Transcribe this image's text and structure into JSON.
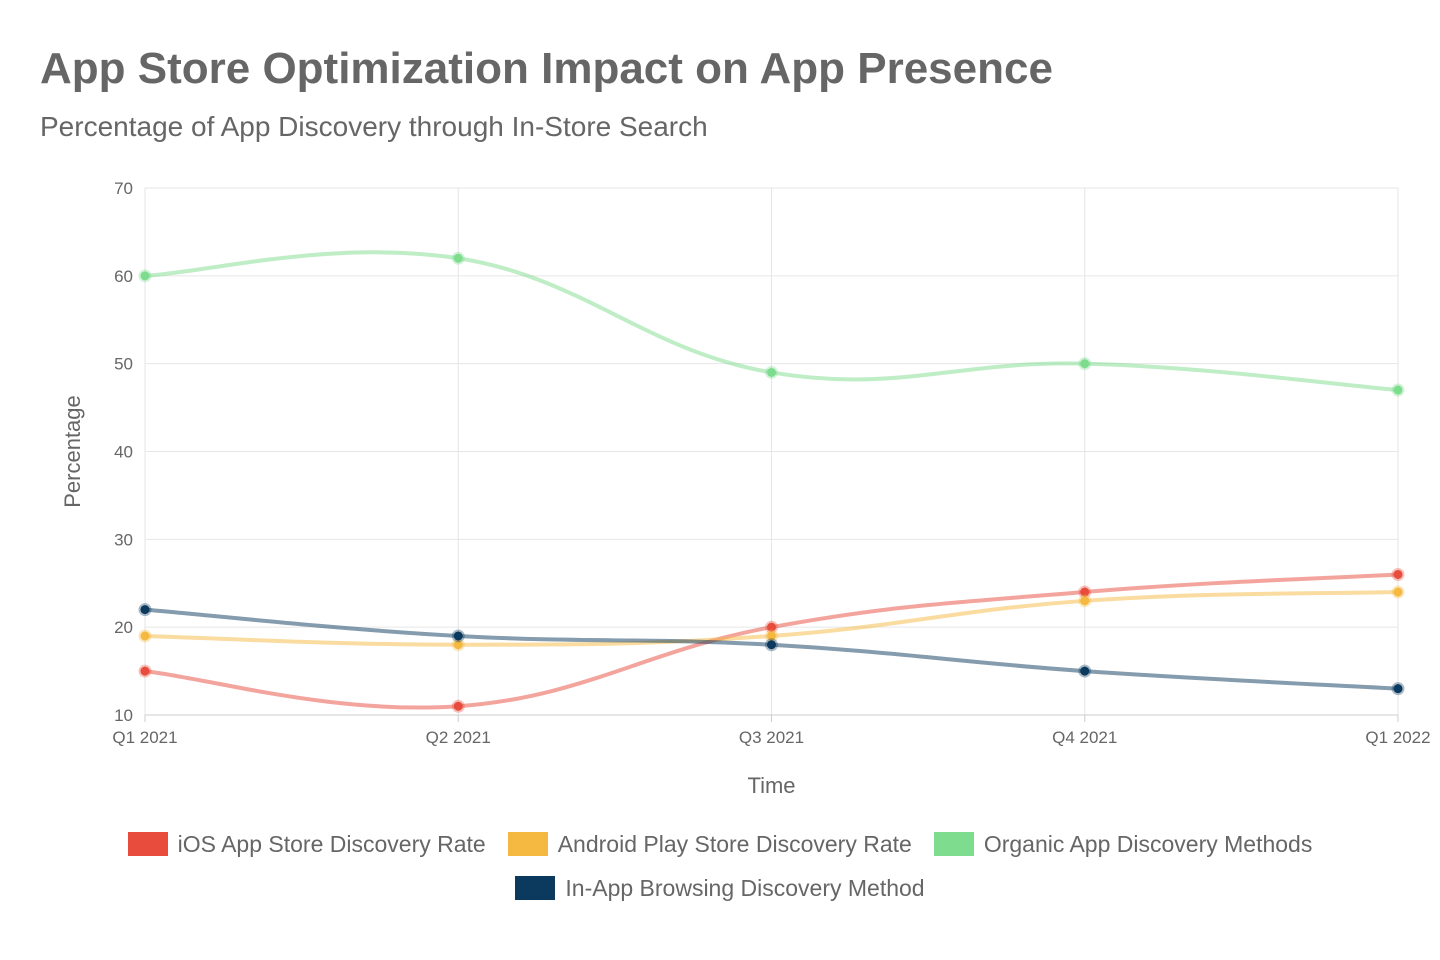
{
  "title": "App Store Optimization Impact on App Presence",
  "subtitle": "Percentage of App Discovery through In-Store Search",
  "chart_data": {
    "type": "line",
    "title": "App Store Optimization Impact on App Presence",
    "subtitle": "Percentage of App Discovery through In-Store Search",
    "xlabel": "Time",
    "ylabel": "Percentage",
    "categories": [
      "Q1 2021",
      "Q2 2021",
      "Q3 2021",
      "Q4 2021",
      "Q1 2022"
    ],
    "ylim": [
      10,
      70
    ],
    "yticks": [
      10,
      20,
      30,
      40,
      50,
      60,
      70
    ],
    "grid": true,
    "legend_position": "bottom",
    "series": [
      {
        "name": "iOS App Store Discovery Rate",
        "color": "#e74c3c",
        "values": [
          15,
          11,
          20,
          24,
          26
        ]
      },
      {
        "name": "Android Play Store Discovery Rate",
        "color": "#f5b942",
        "values": [
          19,
          18,
          19,
          23,
          24
        ]
      },
      {
        "name": "Organic App Discovery Methods",
        "color": "#7ddc8e",
        "values": [
          60,
          62,
          49,
          50,
          47
        ]
      },
      {
        "name": "In-App Browsing Discovery Method",
        "color": "#0b3a5e",
        "values": [
          22,
          19,
          18,
          15,
          13
        ]
      }
    ]
  }
}
